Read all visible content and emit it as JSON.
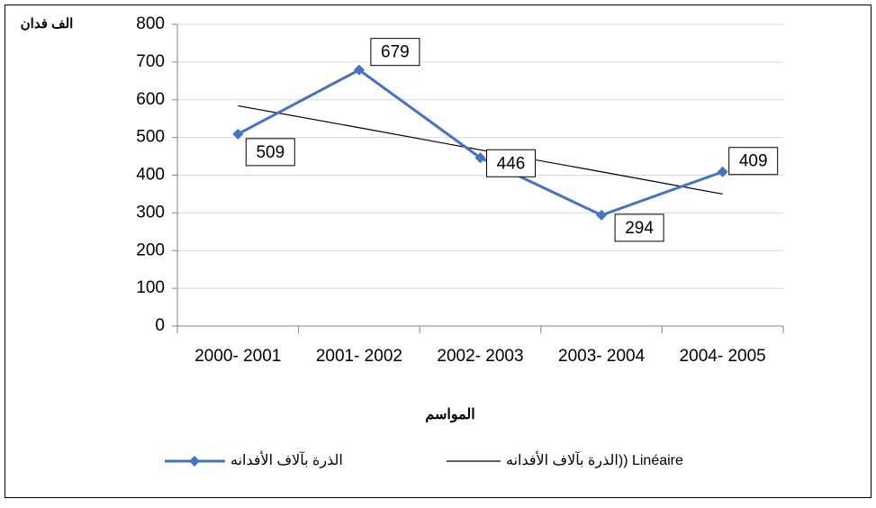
{
  "chart_data": {
    "type": "line",
    "y_unit_label": "الف فدان",
    "x_axis_label": "المواسم",
    "categories": [
      "2000- 2001",
      "2001- 2002",
      "2002- 2003",
      "2003- 2004",
      "2004- 2005"
    ],
    "series": [
      {
        "name": "الذرة بآلاف الأفدانه",
        "color": "#4472c4",
        "values": [
          509,
          679,
          446,
          294,
          409
        ]
      },
      {
        "name": "الذرة بآلاف الأفدانه)) Linéaire",
        "color": "#000000",
        "values": [
          584,
          526,
          467,
          409,
          350
        ]
      }
    ],
    "ylim": [
      0,
      800
    ],
    "yticks": [
      0,
      100,
      200,
      300,
      400,
      500,
      600,
      700,
      800
    ],
    "grid": true
  }
}
